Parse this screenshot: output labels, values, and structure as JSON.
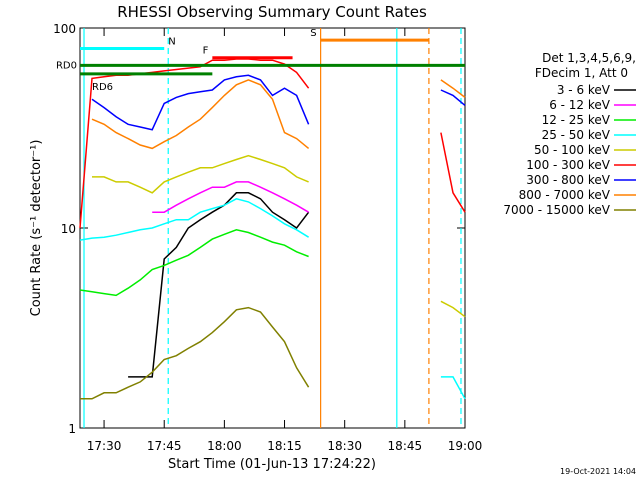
{
  "chart_data": {
    "type": "line",
    "title": "RHESSI Observing Summary Count Rates",
    "xlabel": "Start Time (01-Jun-13 17:24:22)",
    "ylabel": "Count Rate (s⁻¹ detector⁻¹)",
    "footer": "19-Oct-2021 14:04",
    "legend_header": [
      "Det 1,3,4,5,6,9,",
      "FDecim 1, Att 0"
    ],
    "log_y": true,
    "ylim": [
      1,
      100
    ],
    "yticks": [
      1,
      10,
      100
    ],
    "xlim": [
      "17:24",
      "19:00"
    ],
    "xticks": [
      "17:30",
      "17:45",
      "18:00",
      "18:15",
      "18:30",
      "18:45",
      "19:00"
    ],
    "x": [
      "17:24",
      "17:27",
      "17:30",
      "17:33",
      "17:36",
      "17:39",
      "17:42",
      "17:45",
      "17:48",
      "17:51",
      "17:54",
      "17:57",
      "18:00",
      "18:03",
      "18:06",
      "18:09",
      "18:12",
      "18:15",
      "18:18",
      "18:21",
      "18:24",
      "18:54",
      "18:57",
      "19:00"
    ],
    "series": [
      {
        "name": "3 - 6 keV",
        "color": "#000000",
        "values": [
          null,
          null,
          null,
          null,
          1.8,
          1.8,
          1.8,
          7,
          8,
          10,
          11,
          12,
          13,
          15,
          15,
          14,
          12,
          11,
          10,
          12,
          null,
          null,
          null,
          null
        ]
      },
      {
        "name": "6 - 12 keV",
        "color": "#ff00ff",
        "values": [
          null,
          null,
          null,
          null,
          null,
          null,
          12,
          12,
          13,
          14,
          15,
          16,
          16,
          17,
          17,
          16,
          15,
          14,
          13,
          12,
          null,
          null,
          null,
          null
        ]
      },
      {
        "name": "12 - 25 keV",
        "color": "#00ee00",
        "values": [
          4.9,
          4.8,
          4.7,
          4.6,
          5,
          5.5,
          6.2,
          6.5,
          6.9,
          7.3,
          8,
          8.8,
          9.3,
          9.8,
          9.5,
          9,
          8.5,
          8.2,
          7.6,
          7.2,
          null,
          null,
          null,
          null
        ]
      },
      {
        "name": "25 - 50 keV",
        "color": "#00ffff",
        "values": [
          8.7,
          8.9,
          9,
          9.2,
          9.5,
          9.8,
          10,
          10.5,
          11,
          11,
          12,
          12.5,
          13,
          14,
          13.5,
          12.5,
          11.5,
          10.5,
          9.8,
          9,
          null,
          1.8,
          1.8,
          1.4
        ]
      },
      {
        "name": "50 - 100 keV",
        "color": "#cccc00",
        "values": [
          null,
          18,
          18,
          17,
          17,
          16,
          15,
          17,
          18,
          19,
          20,
          20,
          21,
          22,
          23,
          22,
          21,
          20,
          18,
          17,
          null,
          4.3,
          4,
          3.6
        ]
      },
      {
        "name": "100 - 300 keV",
        "color": "#ff0000",
        "values": [
          10,
          56,
          57,
          58,
          58,
          59,
          60,
          61,
          62,
          63,
          64,
          69,
          69,
          70,
          70,
          69,
          69,
          66,
          60,
          50,
          null,
          30,
          15,
          12
        ]
      },
      {
        "name": "300 - 800 keV",
        "color": "#0000ff",
        "values": [
          null,
          44,
          40,
          36,
          33,
          32,
          31,
          42,
          45,
          47,
          48,
          49,
          55,
          57,
          58,
          55,
          46,
          50,
          46,
          33,
          null,
          49,
          46,
          41
        ]
      },
      {
        "name": "800 - 7000 keV",
        "color": "#ff8000",
        "values": [
          null,
          35,
          33,
          30,
          28,
          26,
          25,
          27,
          29,
          32,
          35,
          40,
          46,
          52,
          55,
          52,
          44,
          30,
          28,
          25,
          null,
          55,
          50,
          45
        ]
      },
      {
        "name": "7000 - 15000 keV",
        "color": "#808000",
        "values": [
          1.4,
          1.4,
          1.5,
          1.5,
          1.6,
          1.7,
          1.9,
          2.2,
          2.3,
          2.5,
          2.7,
          3,
          3.4,
          3.9,
          4,
          3.8,
          3.2,
          2.7,
          2,
          1.6,
          null,
          null,
          null,
          null
        ]
      }
    ],
    "flags": [
      {
        "label": "N",
        "color": "#00ffff",
        "start": "17:24",
        "end": "17:45",
        "level": 79
      },
      {
        "label": "F",
        "color": "#ff0000",
        "start": "17:57",
        "end": "18:17",
        "level": 71
      },
      {
        "label": "S",
        "color": "#ff8000",
        "start": "18:24",
        "end": "18:51",
        "level": 87
      },
      {
        "label": "RD0",
        "color": "#008000",
        "start": "17:24",
        "end": "19:00",
        "level": 65
      },
      {
        "label": "RD6",
        "color": "#008000",
        "start": "17:24",
        "end": "17:57",
        "level": 59
      }
    ],
    "vlines": [
      {
        "x": "17:25",
        "color": "#00ffff",
        "dashed": false
      },
      {
        "x": "17:46",
        "color": "#00ffff",
        "dashed": true
      },
      {
        "x": "18:24",
        "color": "#ff8000",
        "dashed": false
      },
      {
        "x": "18:43",
        "color": "#00ffff",
        "dashed": false
      },
      {
        "x": "18:51",
        "color": "#ff8000",
        "dashed": true
      },
      {
        "x": "18:59",
        "color": "#00ffff",
        "dashed": true
      }
    ]
  }
}
